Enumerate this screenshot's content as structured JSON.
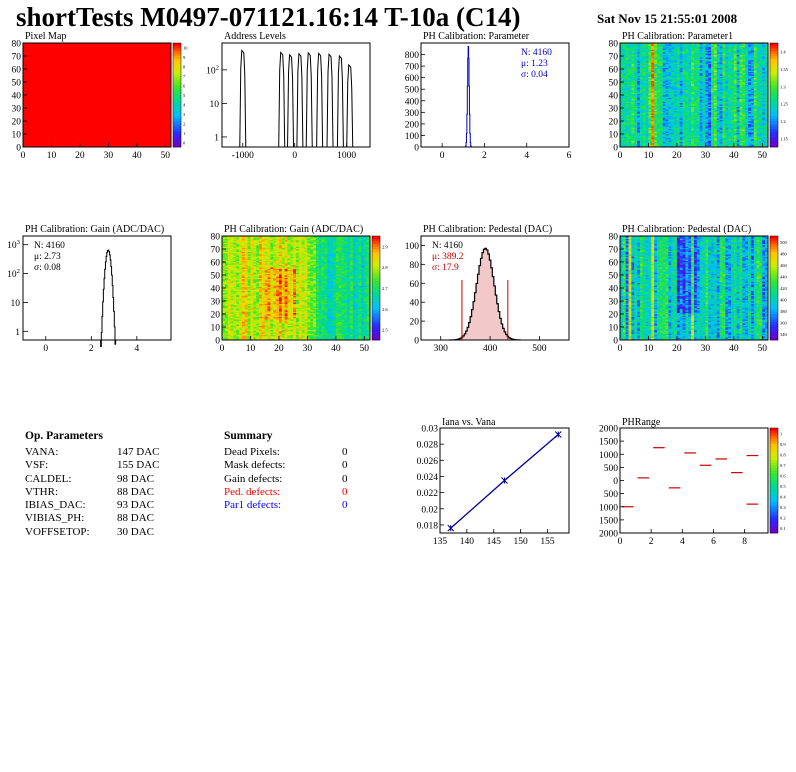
{
  "header": {
    "title": "shortTests M0497-071121.16:14 T-10a (C14)",
    "date": "Sat Nov 15 21:55:01 2008"
  },
  "op_params": {
    "heading": "Op. Parameters",
    "rows": [
      {
        "name": "VANA:",
        "value": "147 DAC"
      },
      {
        "name": "VSF:",
        "value": "155 DAC"
      },
      {
        "name": "CALDEL:",
        "value": "98 DAC"
      },
      {
        "name": "VTHR:",
        "value": "88 DAC"
      },
      {
        "name": "IBIAS_DAC:",
        "value": "93 DAC"
      },
      {
        "name": "VIBIAS_PH:",
        "value": "88 DAC"
      },
      {
        "name": "VOFFSETOP:",
        "value": "30 DAC"
      }
    ]
  },
  "summary": {
    "heading": "Summary",
    "rows": [
      {
        "name": "Dead Pixels:",
        "value": "0",
        "color": "#000000"
      },
      {
        "name": "Mask defects:",
        "value": "0",
        "color": "#000000"
      },
      {
        "name": "Gain defects:",
        "value": "0",
        "color": "#000000"
      },
      {
        "name": "Ped. defects:",
        "value": "0",
        "color": "#ff0000"
      },
      {
        "name": "Par1 defects:",
        "value": "0",
        "color": "#0000ff"
      }
    ]
  },
  "chart_data": [
    {
      "id": "pixel-map",
      "type": "heatmap",
      "title": "Pixel Map",
      "xlim": [
        0,
        52
      ],
      "ylim": [
        0,
        80
      ],
      "xticks": [
        "0",
        "10",
        "20",
        "30",
        "40",
        "50"
      ],
      "yticks": [
        "0",
        "10",
        "20",
        "30",
        "40",
        "50",
        "60",
        "70",
        "80"
      ],
      "fill": "uniform",
      "fill_color": "#ff0000",
      "palette_ticks": [
        "0",
        "1",
        "2",
        "3",
        "4",
        "5",
        "6",
        "7",
        "8",
        "9",
        "10"
      ]
    },
    {
      "id": "address-levels",
      "type": "line",
      "title": "Address Levels",
      "xlim": [
        -1400,
        1450
      ],
      "log_y": true,
      "y_decades": [
        0,
        1,
        2
      ],
      "xticks": [
        "-1000",
        "0",
        "1000"
      ],
      "yticks": [
        "1",
        "10",
        "10^2"
      ],
      "peaks": [
        {
          "x": -1000,
          "height": 380
        },
        {
          "x": -250,
          "height": 330
        },
        {
          "x": -80,
          "height": 280
        },
        {
          "x": 100,
          "height": 300
        },
        {
          "x": 280,
          "height": 320
        },
        {
          "x": 480,
          "height": 310
        },
        {
          "x": 680,
          "height": 290
        },
        {
          "x": 880,
          "height": 260
        },
        {
          "x": 1060,
          "height": 140
        }
      ]
    },
    {
      "id": "ph-param",
      "type": "line",
      "title": "PH Calibration: Parameter",
      "xlim": [
        -1,
        6
      ],
      "ylim": [
        0,
        900
      ],
      "xticks": [
        "0",
        "2",
        "4",
        "6"
      ],
      "yticks": [
        "0",
        "100",
        "200",
        "300",
        "400",
        "500",
        "600",
        "700",
        "800"
      ],
      "stats": {
        "n": "N: 4160",
        "mu": "μ: 1.23",
        "sigma": "σ: 0.04"
      },
      "color": "#0000cc",
      "peak": {
        "mean": 1.23,
        "sigma": 0.04,
        "max": 870
      }
    },
    {
      "id": "ph-param1",
      "type": "heatmap",
      "title": "PH Calibration: Parameter1",
      "xlim": [
        0,
        52
      ],
      "ylim": [
        0,
        80
      ],
      "xticks": [
        "0",
        "10",
        "20",
        "30",
        "40",
        "50"
      ],
      "yticks": [
        "0",
        "10",
        "20",
        "30",
        "40",
        "50",
        "60",
        "70",
        "80"
      ],
      "palette_ticks": [
        "1.15",
        "1.2",
        "1.25",
        "1.3",
        "1.35",
        "1.4"
      ]
    },
    {
      "id": "gain-hist",
      "type": "line",
      "title": "PH Calibration: Gain (ADC/DAC)",
      "xlim": [
        -1,
        5.5
      ],
      "log_y": true,
      "y_decades": [
        -0.3,
        3.3
      ],
      "xticks": [
        "0",
        "2",
        "4"
      ],
      "yticks": [
        "1",
        "10",
        "10^2",
        "10^3"
      ],
      "stats": {
        "n": "N: 4160",
        "mu": "μ: 2.73",
        "sigma": "σ: 0.08"
      },
      "peak": {
        "mean": 2.73,
        "sigma": 0.08,
        "max": 650
      }
    },
    {
      "id": "gain-map",
      "type": "heatmap",
      "title": "PH Calibration: Gain (ADC/DAC)",
      "xlim": [
        0,
        52
      ],
      "ylim": [
        0,
        80
      ],
      "xticks": [
        "0",
        "10",
        "20",
        "30",
        "40",
        "50"
      ],
      "yticks": [
        "0",
        "10",
        "20",
        "30",
        "40",
        "50",
        "60",
        "70",
        "80"
      ],
      "palette_ticks": [
        "2.5",
        "2.6",
        "2.7",
        "2.8",
        "2.9"
      ]
    },
    {
      "id": "pedestal-hist",
      "type": "line",
      "title": "PH Calibration: Pedestal (DAC)",
      "xlim": [
        260,
        560
      ],
      "ylim": [
        0,
        110
      ],
      "xticks": [
        "300",
        "400",
        "500"
      ],
      "yticks": [
        "0",
        "20",
        "40",
        "60",
        "80",
        "100"
      ],
      "stats": {
        "n": "N: 4160",
        "mu": "μ: 389.2",
        "sigma": "σ: 17.9"
      },
      "peak": {
        "mean": 389.2,
        "sigma": 17.9,
        "max": 97
      },
      "cut_lines": [
        343,
        436
      ]
    },
    {
      "id": "pedestal-map",
      "type": "heatmap",
      "title": "PH Calibration: Pedestal (DAC)",
      "xlim": [
        0,
        52
      ],
      "ylim": [
        0,
        80
      ],
      "xticks": [
        "0",
        "10",
        "20",
        "30",
        "40",
        "50"
      ],
      "yticks": [
        "0",
        "10",
        "20",
        "30",
        "40",
        "50",
        "60",
        "70",
        "80"
      ],
      "palette_ticks": [
        "340",
        "360",
        "380",
        "400",
        "420",
        "440",
        "460",
        "480",
        "500"
      ]
    },
    {
      "id": "iana-vana",
      "type": "scatter",
      "title": "Iana vs. Vana",
      "xlim": [
        135,
        159
      ],
      "ylim": [
        0.017,
        0.03
      ],
      "xticks": [
        "135",
        "140",
        "145",
        "150",
        "155"
      ],
      "yticks": [
        "0.018",
        "0.02",
        "0.022",
        "0.024",
        "0.026",
        "0.028",
        "0.03"
      ],
      "x": [
        137,
        147,
        157
      ],
      "y": [
        0.0176,
        0.0235,
        0.0292
      ]
    },
    {
      "id": "phrange",
      "type": "heatmap",
      "title": "PHRange",
      "xlim": [
        0,
        9.5
      ],
      "ylim": [
        -2000,
        2000
      ],
      "xticks": [
        "0",
        "2",
        "4",
        "6",
        "8"
      ],
      "yticks": [
        "2000",
        "1500",
        "1000",
        "500",
        "0",
        "500",
        "1000",
        "1500",
        "2000"
      ],
      "palette_ticks": [
        "0.1",
        "0.2",
        "0.3",
        "0.4",
        "0.5",
        "0.6",
        "0.7",
        "0.8",
        "0.9",
        "1"
      ],
      "segments": [
        {
          "x0": 0,
          "x1": 1,
          "y": -1000
        },
        {
          "x0": 1,
          "x1": 2,
          "y": 100
        },
        {
          "x0": 2,
          "x1": 3,
          "y": 1250
        },
        {
          "x0": 3,
          "x1": 4,
          "y": -280
        },
        {
          "x0": 4,
          "x1": 5,
          "y": 1050
        },
        {
          "x0": 5,
          "x1": 6,
          "y": 580
        },
        {
          "x0": 6,
          "x1": 7,
          "y": 820
        },
        {
          "x0": 7,
          "x1": 8,
          "y": 300
        },
        {
          "x0": 8,
          "x1": 9,
          "y": 950
        },
        {
          "x0": 8,
          "x1": 9,
          "y": -900
        }
      ]
    }
  ]
}
